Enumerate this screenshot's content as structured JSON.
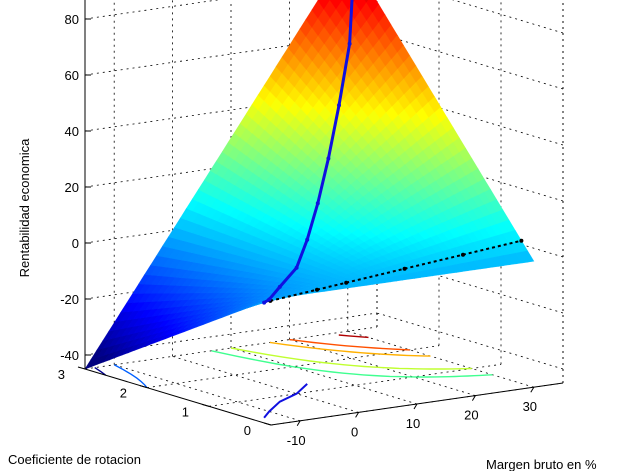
{
  "chart_data": {
    "type": "surface",
    "xlabel": "Margen bruto en %",
    "ylabel": "Coeficiente de rotacion",
    "zlabel": "Rentabilidad economica",
    "xlim": [
      -15,
      35
    ],
    "ylim": [
      0,
      3
    ],
    "zlim": [
      -45,
      95
    ],
    "xticks": [
      -10,
      0,
      10,
      20,
      30
    ],
    "yticks": [
      0,
      1,
      2,
      3
    ],
    "zticks": [
      -40,
      -20,
      0,
      20,
      40,
      60,
      80
    ],
    "grid": true,
    "colormap": "jet",
    "surface": {
      "function": "z = x * y",
      "x_range": [
        -15,
        30
      ],
      "y_range": [
        0,
        3
      ]
    },
    "blue_curve": {
      "color": "#1010e0",
      "points": [
        [
          -13,
          0.3,
          -3.9
        ],
        [
          -10,
          0.5,
          -5
        ],
        [
          -5,
          0.8,
          -4
        ],
        [
          0,
          1.0,
          0
        ],
        [
          5,
          1.3,
          6.5
        ],
        [
          10,
          1.6,
          16
        ],
        [
          15,
          1.9,
          28.5
        ],
        [
          20,
          2.2,
          44
        ],
        [
          25,
          2.5,
          62.5
        ],
        [
          30,
          2.9,
          87
        ]
      ]
    },
    "black_curve": {
      "color": "#000000",
      "points": [
        [
          -13,
          0.2,
          -2.6
        ],
        [
          -5,
          0.2,
          -1
        ],
        [
          0,
          0.2,
          0
        ],
        [
          10,
          0.2,
          2
        ],
        [
          20,
          0.2,
          4
        ],
        [
          30,
          0.2,
          6
        ]
      ]
    },
    "floor_contours": [
      {
        "level": -40,
        "color": "#00008f"
      },
      {
        "level": -30,
        "color": "#0060ff"
      },
      {
        "level": 20,
        "color": "#40ff90"
      },
      {
        "level": 30,
        "color": "#c0ff30"
      },
      {
        "level": 50,
        "color": "#ffb000"
      },
      {
        "level": 60,
        "color": "#ff5000"
      },
      {
        "level": 80,
        "color": "#b00000"
      }
    ]
  }
}
